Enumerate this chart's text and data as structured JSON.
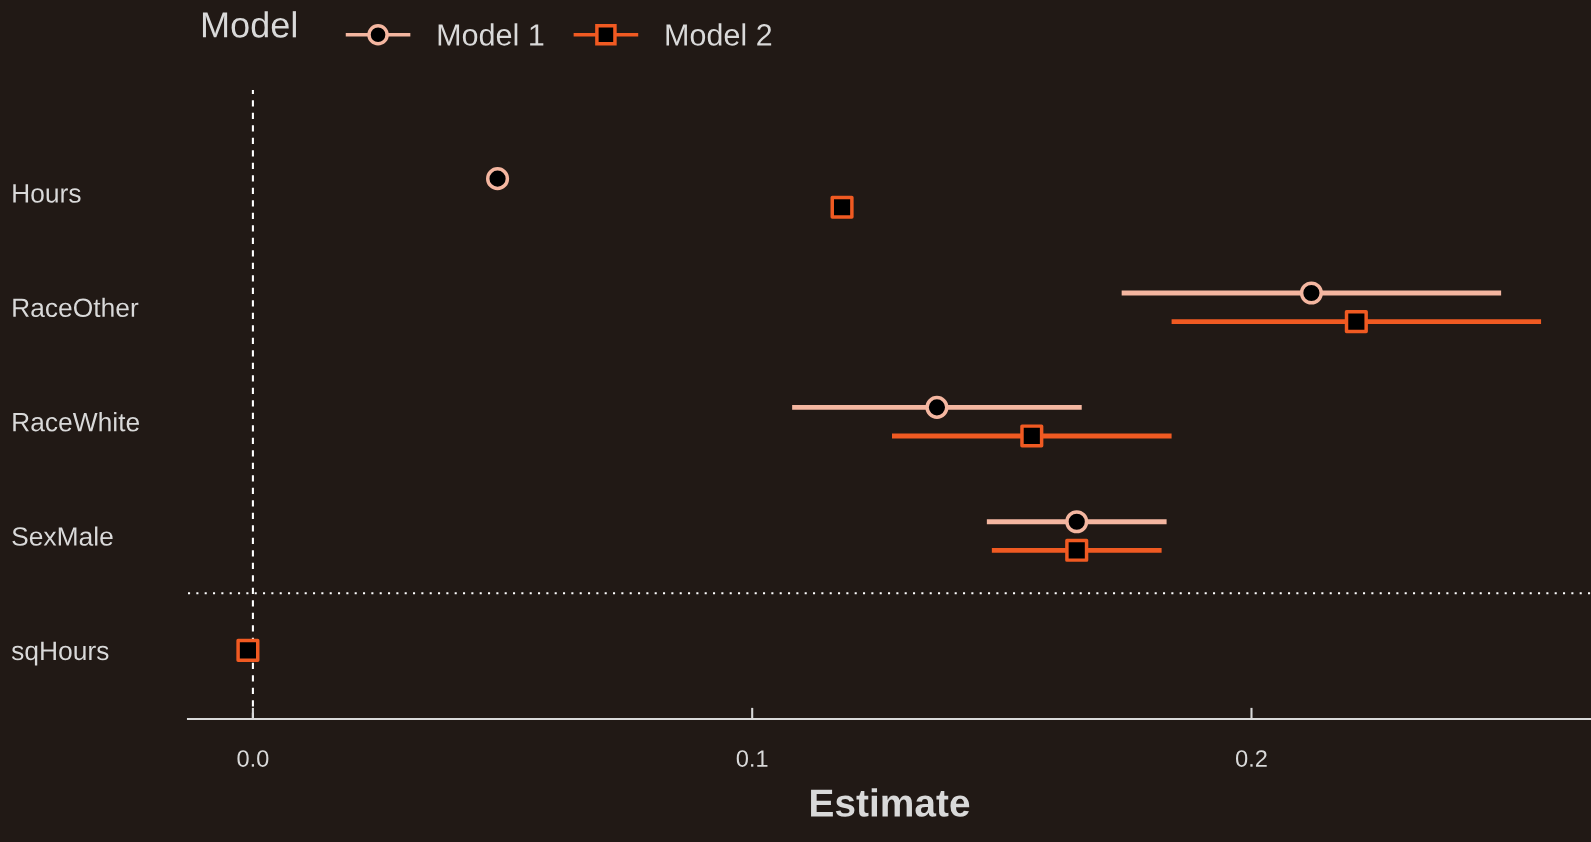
{
  "chart_data": {
    "type": "scatter",
    "orientation": "horizontal",
    "xlabel": "Estimate",
    "legend_title": "Model",
    "legend": "top",
    "categories": [
      "Hours",
      "RaceOther",
      "RaceWhite",
      "SexMale",
      "sqHours"
    ],
    "series": [
      {
        "name": "Model 1",
        "color": "#f4b6a0",
        "marker": "circle",
        "values": [
          0.049,
          0.212,
          0.137,
          0.165,
          null
        ],
        "errors": [
          null,
          [
            0.174,
            0.25
          ],
          [
            0.108,
            0.166
          ],
          [
            0.147,
            0.183
          ],
          null
        ]
      },
      {
        "name": "Model 2",
        "color": "#f05a22",
        "marker": "square",
        "values": [
          0.118,
          0.221,
          0.156,
          0.165,
          -0.001
        ],
        "errors": [
          [
            0.116,
            0.12
          ],
          [
            0.184,
            0.258
          ],
          [
            0.128,
            0.184
          ],
          [
            0.148,
            0.182
          ],
          null
        ]
      }
    ],
    "xlim": [
      -0.013,
      0.268
    ],
    "xticks": [
      {
        "value": 0,
        "label": "0.0"
      },
      0.1,
      0.2
    ],
    "ref_lines": [
      {
        "axis": "x",
        "value": 0,
        "line_style": "dashed",
        "color": "#ffffff"
      }
    ],
    "grid": false
  }
}
